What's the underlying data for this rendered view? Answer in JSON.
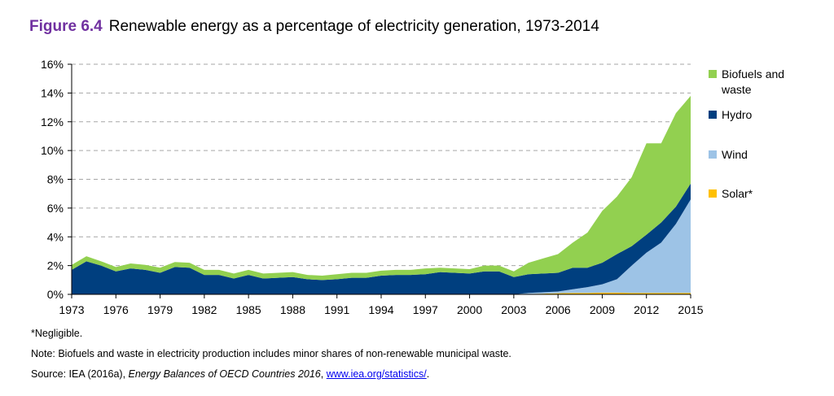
{
  "figure": {
    "number": "Figure 6.4",
    "title": "Renewable energy as a percentage of electricity generation, 1973-2014"
  },
  "notes": {
    "negligible": "*Negligible.",
    "note": "Note: Biofuels and waste in electricity production includes minor shares of non-renewable municipal waste.",
    "source_prefix": "Source: IEA (2016a), ",
    "source_italic": "Energy Balances of OECD Countries 2016",
    "source_sep": ", ",
    "source_link": "www.iea.org/statistics/",
    "source_end": "."
  },
  "chart_data": {
    "type": "area",
    "stacked": true,
    "title": "",
    "xlabel": "",
    "ylabel": "",
    "xlim": [
      1973,
      2015
    ],
    "ylim": [
      0,
      16
    ],
    "y_ticks": [
      0,
      2,
      4,
      6,
      8,
      10,
      12,
      14,
      16
    ],
    "y_tick_labels": [
      "0%",
      "2%",
      "4%",
      "6%",
      "8%",
      "10%",
      "12%",
      "14%",
      "16%"
    ],
    "x_ticks": [
      1973,
      1976,
      1979,
      1982,
      1985,
      1988,
      1991,
      1994,
      1997,
      2000,
      2003,
      2006,
      2009,
      2012,
      2015
    ],
    "x_tick_labels": [
      "1973",
      "1976",
      "1979",
      "1982",
      "1985",
      "1988",
      "1991",
      "1994",
      "1997",
      "2000",
      "2003",
      "2006",
      "2009",
      "2012",
      "2015"
    ],
    "grid": "horizontal dashed",
    "legend_position": "right",
    "x": [
      1973,
      1974,
      1975,
      1976,
      1977,
      1978,
      1979,
      1980,
      1981,
      1982,
      1983,
      1984,
      1985,
      1986,
      1987,
      1988,
      1989,
      1990,
      1991,
      1992,
      1993,
      1994,
      1995,
      1996,
      1997,
      1998,
      1999,
      2000,
      2001,
      2002,
      2003,
      2004,
      2005,
      2006,
      2007,
      2008,
      2009,
      2010,
      2011,
      2012,
      2013,
      2014,
      2015
    ],
    "series": [
      {
        "name": "Solar*",
        "color": "#ffc000",
        "values": [
          0,
          0,
          0,
          0,
          0,
          0,
          0,
          0,
          0,
          0,
          0,
          0,
          0,
          0,
          0,
          0,
          0,
          0,
          0,
          0,
          0,
          0,
          0,
          0,
          0,
          0,
          0,
          0,
          0,
          0,
          0,
          0.03,
          0.05,
          0.08,
          0.1,
          0.1,
          0.12,
          0.12,
          0.1,
          0.1,
          0.1,
          0.1,
          0.1
        ]
      },
      {
        "name": "Wind",
        "color": "#9dc3e6",
        "values": [
          0,
          0,
          0,
          0,
          0,
          0,
          0,
          0,
          0,
          0,
          0,
          0,
          0,
          0,
          0,
          0,
          0,
          0,
          0,
          0,
          0,
          0,
          0,
          0,
          0,
          0,
          0,
          0,
          0,
          0,
          0,
          0.07,
          0.1,
          0.12,
          0.25,
          0.4,
          0.58,
          0.93,
          1.9,
          2.8,
          3.5,
          4.8,
          6.5
        ]
      },
      {
        "name": "Hydro",
        "color": "#003f7f",
        "values": [
          1.7,
          2.3,
          2.0,
          1.6,
          1.8,
          1.7,
          1.5,
          1.9,
          1.85,
          1.35,
          1.35,
          1.1,
          1.35,
          1.1,
          1.15,
          1.2,
          1.05,
          1.0,
          1.05,
          1.15,
          1.15,
          1.3,
          1.35,
          1.35,
          1.4,
          1.55,
          1.5,
          1.45,
          1.6,
          1.6,
          1.2,
          1.3,
          1.3,
          1.3,
          1.5,
          1.35,
          1.5,
          1.75,
          1.35,
          1.25,
          1.4,
          1.2,
          1.1
        ]
      },
      {
        "name": "Biofuels and waste",
        "color": "#92d050",
        "values": [
          0.35,
          0.35,
          0.3,
          0.3,
          0.35,
          0.35,
          0.35,
          0.35,
          0.35,
          0.35,
          0.35,
          0.35,
          0.35,
          0.35,
          0.35,
          0.35,
          0.3,
          0.3,
          0.35,
          0.35,
          0.35,
          0.35,
          0.35,
          0.35,
          0.4,
          0.3,
          0.3,
          0.3,
          0.4,
          0.4,
          0.4,
          0.8,
          1.05,
          1.3,
          1.75,
          2.45,
          3.6,
          4.0,
          4.8,
          6.35,
          5.5,
          6.5,
          6.1
        ]
      }
    ],
    "legend_order": [
      "Biofuels and waste",
      "Hydro",
      "Wind",
      "Solar*"
    ],
    "legend_lines": [
      [
        "Biofuels and",
        "waste"
      ],
      [
        "Hydro"
      ],
      [
        "Wind"
      ],
      [
        "Solar*"
      ]
    ]
  }
}
